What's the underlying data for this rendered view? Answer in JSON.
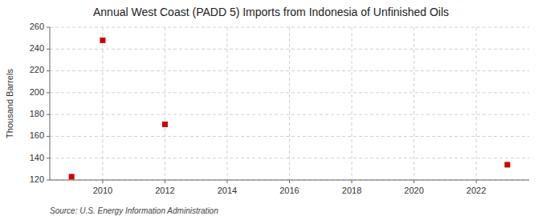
{
  "chart_data": {
    "type": "scatter",
    "title": "Annual West Coast (PADD 5) Imports from Indonesia of Unfinished Oils",
    "ylabel": "Thousand Barrels",
    "source": "Source: U.S. Energy Information Administration",
    "x": [
      2009,
      2010,
      2012,
      2023
    ],
    "values": [
      123,
      248,
      171,
      134
    ],
    "color": "#cc0000",
    "marker": "square",
    "xlim": [
      2008.3,
      2023.7
    ],
    "ylim": [
      120,
      260
    ],
    "xticks": [
      2010,
      2012,
      2014,
      2016,
      2018,
      2020,
      2022
    ],
    "yticks": [
      120,
      140,
      160,
      180,
      200,
      220,
      240,
      260
    ],
    "grid": true
  }
}
